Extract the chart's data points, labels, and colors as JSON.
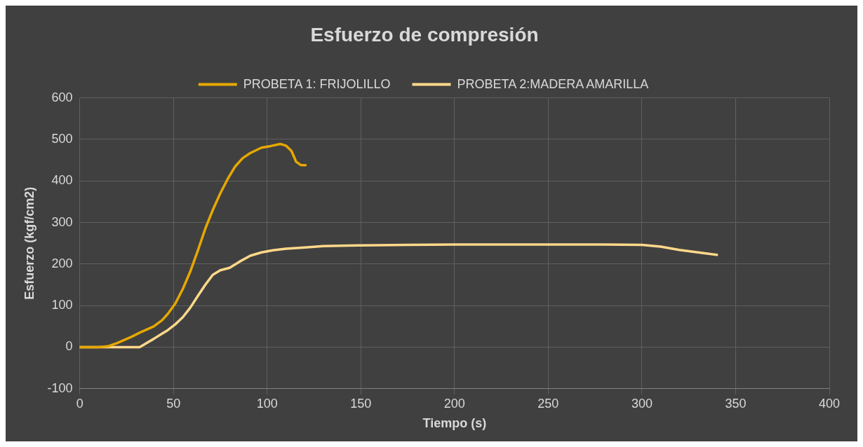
{
  "chart_data": {
    "type": "line",
    "title": "Esfuerzo de compresión",
    "xlabel": "Tiempo (s)",
    "ylabel": "Esfuerzo (kgf/cm2)",
    "xlim": [
      0,
      400
    ],
    "xticks": [
      0,
      50,
      100,
      150,
      200,
      250,
      300,
      350,
      400
    ],
    "ylim": [
      -100,
      600
    ],
    "yticks": [
      -100,
      0,
      100,
      200,
      300,
      400,
      500,
      600
    ],
    "grid": true,
    "legend": "top",
    "marker": "none",
    "line_style": "solid",
    "series": [
      {
        "name": "PROBETA 1: FRIJOLILLO",
        "color": "#e6a800",
        "x": [
          0,
          10,
          15,
          20,
          27.7,
          33,
          39.5,
          44,
          47,
          51,
          55,
          59,
          63,
          67,
          71,
          75,
          79,
          83,
          87,
          91,
          97,
          102,
          107,
          110,
          113,
          115.5,
          118,
          120.5
        ],
        "values": [
          0,
          0,
          2,
          10,
          25,
          37,
          50,
          65,
          80,
          105,
          140,
          182,
          232,
          285,
          330,
          370,
          405,
          435,
          455,
          467,
          480,
          484,
          489,
          485,
          472,
          446,
          438,
          438
        ]
      },
      {
        "name": "PROBETA 2:MADERA AMARILLA",
        "color": "#ffd88a",
        "x": [
          0,
          20,
          32,
          35,
          39.5,
          43,
          47,
          51,
          55,
          59,
          63,
          67,
          71,
          75,
          80,
          85,
          91,
          97,
          103,
          110,
          120,
          130,
          150,
          175,
          200,
          250,
          280,
          300,
          310,
          320,
          330,
          340
        ],
        "values": [
          0,
          0,
          0,
          8,
          20,
          30,
          41,
          55,
          72,
          95,
          123,
          150,
          174,
          185,
          191,
          205,
          220,
          228,
          233,
          237,
          240,
          243,
          245,
          246,
          247,
          247,
          247,
          246,
          242,
          234,
          228,
          222
        ]
      }
    ]
  }
}
